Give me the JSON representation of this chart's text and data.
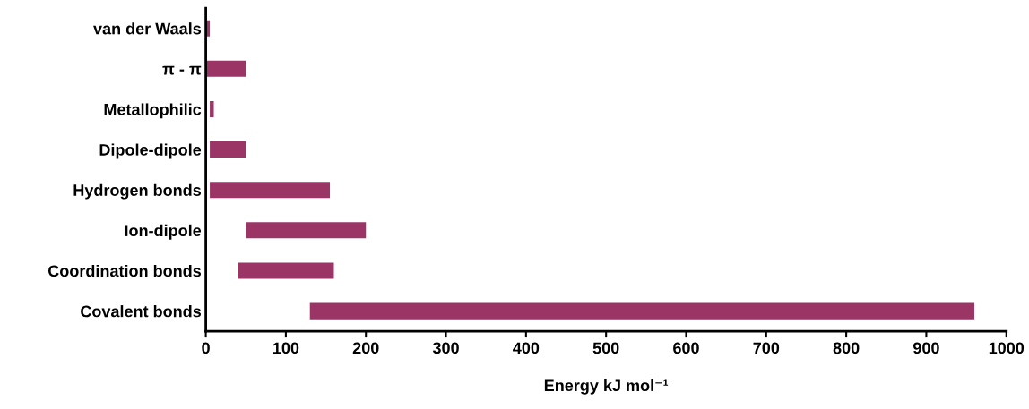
{
  "chart_data": {
    "type": "bar",
    "orientation": "horizontal",
    "xlabel": "Energy kJ mol⁻¹",
    "categories": [
      "van der Waals",
      "π - π",
      "Metallophilic",
      "Dipole-dipole",
      "Hydrogen bonds",
      "Ion-dipole",
      "Coordination bonds",
      "Covalent bonds"
    ],
    "base": [
      0,
      0,
      5,
      5,
      5,
      50,
      40,
      130
    ],
    "values": [
      5,
      50,
      5,
      45,
      150,
      150,
      120,
      830
    ],
    "color": "#9b3566",
    "xlim": [
      0,
      1000
    ],
    "xticks": [
      0,
      100,
      200,
      300,
      400,
      500,
      600,
      700,
      800,
      900,
      1000
    ],
    "grid": false
  }
}
